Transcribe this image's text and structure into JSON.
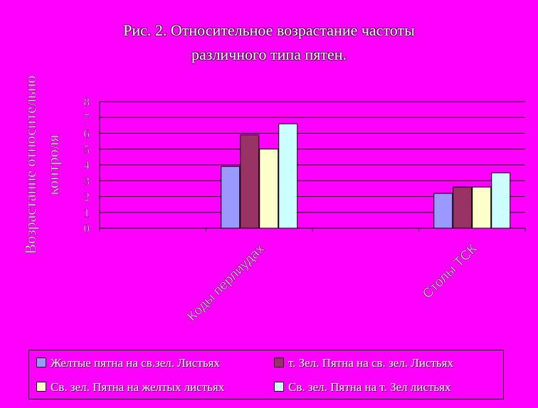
{
  "chart_data": {
    "type": "bar",
    "title_lines": [
      "Рис. 2. Относительное возрастание частоты",
      "различного типа пятен."
    ],
    "ylabel_lines": [
      "Возрастание относительно",
      "контроля"
    ],
    "categories": [
      "",
      "Коды перлиудах",
      "",
      "Столы ТСК"
    ],
    "ylim": [
      0,
      8
    ],
    "yticks": [
      "0",
      "1",
      "2",
      "3",
      "4",
      "5",
      "6",
      "7",
      "8"
    ],
    "grid": true,
    "series": [
      {
        "name": "Желтые пятна на св.зел. Листьях",
        "color": "#9999FF",
        "values": [
          null,
          3.9,
          null,
          2.2
        ]
      },
      {
        "name": "т. Зел. Пятна на св. зел. Листьях",
        "color": "#993366",
        "values": [
          null,
          5.9,
          null,
          2.6
        ]
      },
      {
        "name": "Св. зел. Пятна на желтых листьях",
        "color": "#FFFFCC",
        "values": [
          null,
          5.0,
          null,
          2.6
        ]
      },
      {
        "name": "Св. зел. Пятна на т. Зел листьях",
        "color": "#CCFFFF",
        "values": [
          null,
          6.6,
          null,
          3.5
        ]
      }
    ],
    "legend_position": "bottom"
  }
}
